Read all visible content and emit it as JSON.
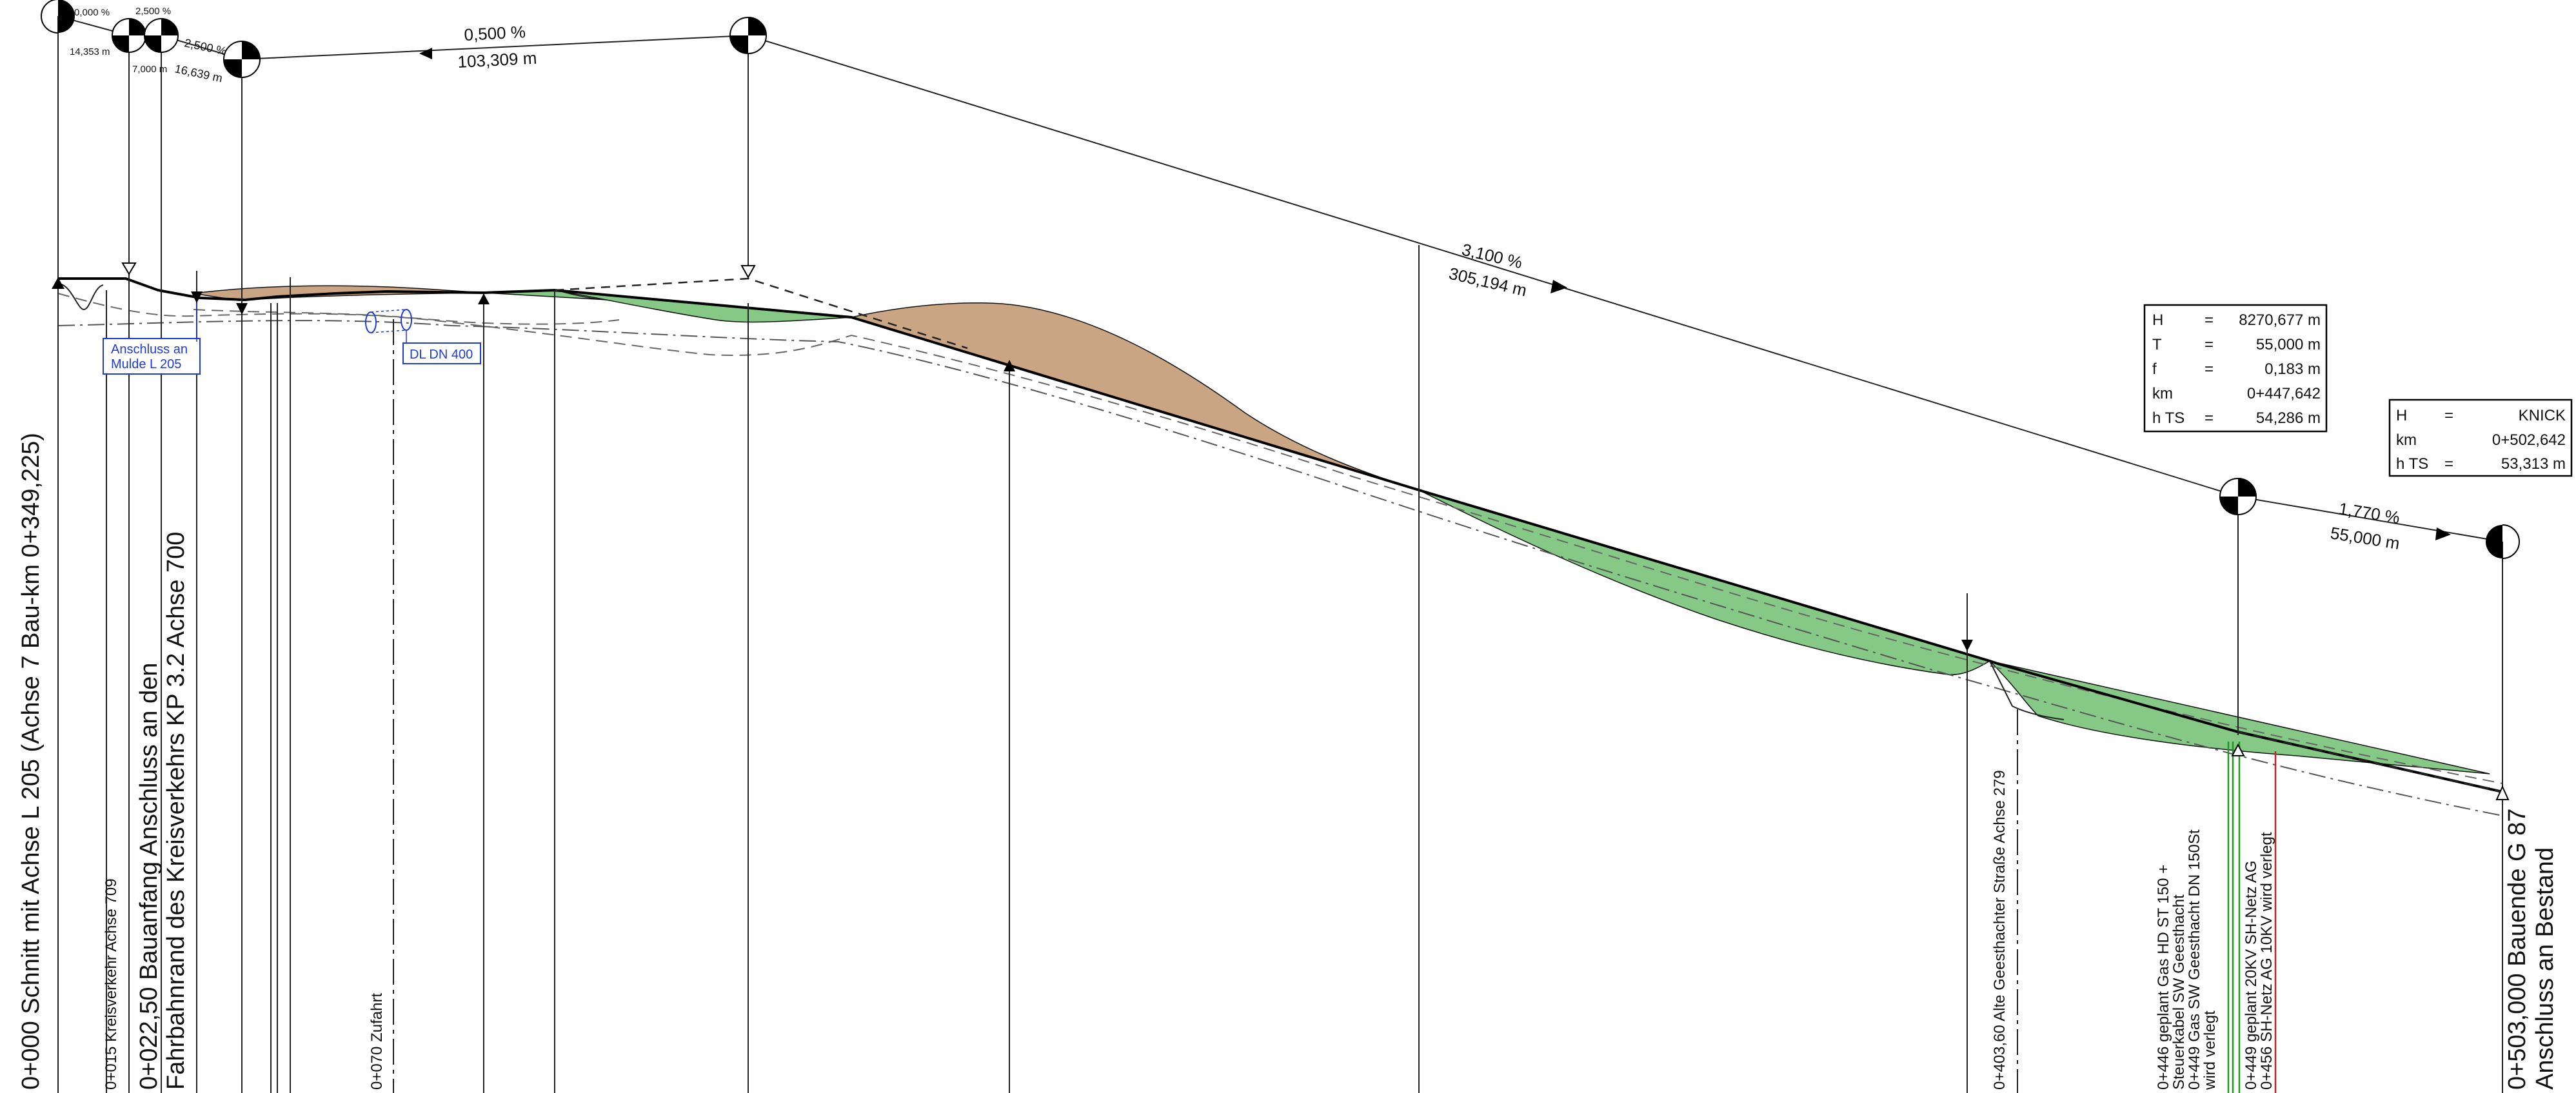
{
  "grade_points": [
    {
      "label_top": "0,000 %",
      "label_bottom": "14,353 m"
    },
    {
      "label_top": "2,500 %",
      "label_bottom": "7,000 m"
    },
    {
      "label_top": "2,500 %",
      "label_bottom": "16,639 m"
    }
  ],
  "grade_segments": [
    {
      "percent": "0,500 %",
      "length": "103,309 m"
    },
    {
      "percent": "3,100 %",
      "length": "305,194 m"
    },
    {
      "percent": "1,770 %",
      "length": "55,000 m"
    }
  ],
  "curve_box": {
    "rows": [
      {
        "key": "H",
        "eq": "=",
        "value": "8270,677 m"
      },
      {
        "key": "T",
        "eq": "=",
        "value": "55,000 m"
      },
      {
        "key": "f",
        "eq": "=",
        "value": "0,183 m"
      },
      {
        "key": "km",
        "eq": "",
        "value": "0+447,642"
      },
      {
        "key": "h TS",
        "eq": "=",
        "value": "54,286 m"
      }
    ]
  },
  "knick_box": {
    "rows": [
      {
        "key": "H",
        "eq": "=",
        "value": "KNICK"
      },
      {
        "key": "km",
        "eq": "",
        "value": "0+502,642"
      },
      {
        "key": "h TS",
        "eq": "=",
        "value": "53,313 m"
      }
    ]
  },
  "annotations": {
    "anschluss_line1": "Anschluss an",
    "anschluss_line2": "Mulde L 205",
    "dl": "DL DN 400"
  },
  "stations": {
    "s0_000": "0+000 Schnitt mit Achse L 205 (Achse 7 Bau-km 0+349,225)",
    "s0_015": "0+015 Kreisverkehr Achse 709",
    "s0_022_l1": "0+022,50 Bauanfang Anschluss an den",
    "s0_022_l2": "Fahrbahnrand des Kreisverkehrs KP 3.2 Achse 700",
    "s0_070": "0+070 Zufahrt",
    "s0_403": "0+403,60 Alte Geesthachter Straße Achse 279",
    "s0_446_l1": "0+446 geplant Gas HD ST 150 +",
    "s0_446_l2": "Steuerkabel SW Geesthacht",
    "s0_449_l1": "0+449 Gas SW Geesthacht DN 150St",
    "s0_449_l2": "wird verlegt",
    "s0_449b": "0+449 geplant 20KV SH-Netz AG",
    "s0_456": "0+456 SH-Netz AG 10KV wird verlegt",
    "s0_503_l1": "0+503,000 Bauende G 87",
    "s0_503_l2": "Anschluss an Bestand"
  }
}
